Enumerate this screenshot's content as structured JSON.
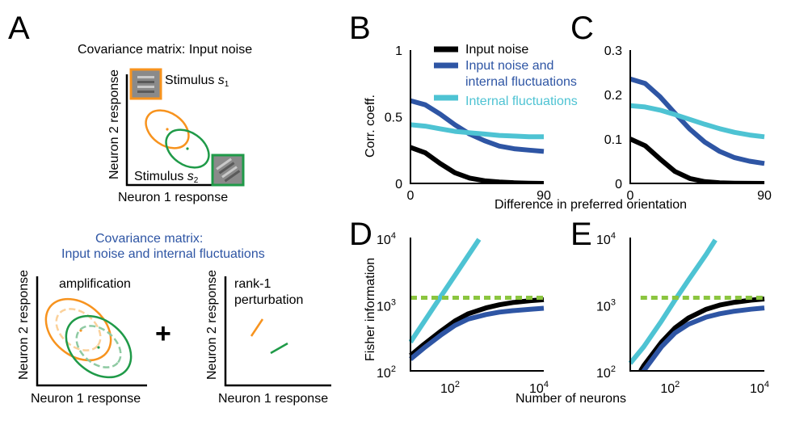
{
  "colors": {
    "black": "#000000",
    "blue": "#2e55a4",
    "cyan": "#4ec3d3",
    "green_dashed": "#8bc53f",
    "orange": "#f7931e",
    "orange_light": "#fbd19b",
    "green": "#1f9a48",
    "green_light": "#8fcaa3",
    "stimulus_orange": "#f7931e",
    "stimulus_green": "#1f9a48"
  },
  "panel_labels": {
    "A": "A",
    "B": "B",
    "C": "C",
    "D": "D",
    "E": "E"
  },
  "panelA": {
    "top_title": "Covariance matrix: Input noise",
    "stimulus1": "Stimulus ",
    "stimulus1_sym": "s",
    "stimulus1_sub": "1",
    "stimulus2": "Stimulus ",
    "stimulus2_sym": "s",
    "stimulus2_sub": "2",
    "ylabel": "Neuron 2 response",
    "xlabel": "Neuron 1 response",
    "bottom_title_line1": "Covariance matrix:",
    "bottom_title_line2": "Input noise and internal fluctuations",
    "amplification": "amplification",
    "rank1_line1": "rank-1",
    "rank1_line2": "perturbation",
    "plus": "+"
  },
  "shared": {
    "correlation_xlabel": "Difference in preferred orientation",
    "fisher_xlabel": "Number of neurons",
    "ylabel_BC": "Corr. coeff.",
    "ylabel_DE": "Fisher information"
  },
  "chart_data": [
    {
      "panel": "B",
      "type": "line",
      "x": [
        0,
        10,
        20,
        30,
        40,
        50,
        60,
        70,
        80,
        90
      ],
      "ylim": [
        0,
        1
      ],
      "xlim": [
        0,
        90
      ],
      "xticks": [
        "0",
        "90"
      ],
      "yticks": [
        "0",
        "0.5",
        "1"
      ],
      "legend": "top-right",
      "series": [
        {
          "name": "Input noise",
          "color": "#000000",
          "values": [
            0.27,
            0.23,
            0.15,
            0.08,
            0.04,
            0.02,
            0.01,
            0.005,
            0.002,
            0.0
          ]
        },
        {
          "name": "Input noise and internal fluctuations",
          "color": "#2e55a4",
          "values": [
            0.62,
            0.59,
            0.52,
            0.44,
            0.37,
            0.32,
            0.28,
            0.26,
            0.25,
            0.24
          ]
        },
        {
          "name": "Internal fluctuations",
          "color": "#4ec3d3",
          "values": [
            0.44,
            0.43,
            0.41,
            0.39,
            0.38,
            0.37,
            0.36,
            0.355,
            0.35,
            0.35
          ]
        }
      ]
    },
    {
      "panel": "C",
      "type": "line",
      "x": [
        0,
        10,
        20,
        30,
        40,
        50,
        60,
        70,
        80,
        90
      ],
      "ylim": [
        0,
        0.3
      ],
      "xlim": [
        0,
        90
      ],
      "xticks": [
        "0",
        "90"
      ],
      "yticks": [
        "0",
        "0.1",
        "0.2",
        "0.3"
      ],
      "series": [
        {
          "color": "#000000",
          "values": [
            0.1,
            0.085,
            0.055,
            0.027,
            0.011,
            0.004,
            0.0015,
            0.0005,
            0.0002,
            0.0
          ]
        },
        {
          "color": "#2e55a4",
          "values": [
            0.235,
            0.225,
            0.195,
            0.158,
            0.122,
            0.093,
            0.072,
            0.058,
            0.05,
            0.045
          ]
        },
        {
          "color": "#4ec3d3",
          "values": [
            0.175,
            0.172,
            0.165,
            0.155,
            0.144,
            0.133,
            0.123,
            0.115,
            0.109,
            0.105
          ]
        }
      ]
    },
    {
      "panel": "D",
      "type": "line",
      "xscale": "log",
      "yscale": "log",
      "xlim": [
        10,
        10000
      ],
      "ylim": [
        100,
        10000
      ],
      "xtick_base": [
        "10",
        "10"
      ],
      "xtick_exp": [
        "2",
        "4"
      ],
      "ytick_base": [
        "10",
        "10",
        "10"
      ],
      "ytick_exp": [
        "2",
        "3",
        "4"
      ],
      "x": [
        10,
        20,
        50,
        100,
        200,
        500,
        1000,
        2000,
        5000,
        10000
      ],
      "series": [
        {
          "color": "#000000",
          "values": [
            170,
            250,
            400,
            560,
            720,
            880,
            980,
            1060,
            1130,
            1170
          ]
        },
        {
          "color": "#2e55a4",
          "values": [
            150,
            220,
            350,
            480,
            600,
            700,
            760,
            800,
            840,
            870
          ]
        },
        {
          "color": "#4ec3d3",
          "x": [
            10,
            20,
            50,
            100,
            200,
            350
          ],
          "values": [
            270,
            540,
            1350,
            2700,
            5400,
            9400
          ]
        },
        {
          "color": "#8bc53f",
          "dashed": true,
          "values": [
            1250,
            1250,
            1250,
            1250,
            1250,
            1250,
            1250,
            1250,
            1250,
            1250
          ]
        }
      ]
    },
    {
      "panel": "E",
      "type": "line",
      "xscale": "log",
      "yscale": "log",
      "xlim": [
        10,
        10000
      ],
      "ylim": [
        100,
        10000
      ],
      "xtick_base": [
        "10",
        "10"
      ],
      "xtick_exp": [
        "2",
        "4"
      ],
      "ytick_base": [
        "10",
        "10",
        "10"
      ],
      "ytick_exp": [
        "2",
        "3",
        "4"
      ],
      "x": [
        17,
        20,
        50,
        100,
        200,
        500,
        1000,
        2000,
        5000,
        10000
      ],
      "series": [
        {
          "color": "#000000",
          "values": [
            100,
            120,
            270,
            440,
            620,
            840,
            970,
            1060,
            1150,
            1200
          ]
        },
        {
          "color": "#2e55a4",
          "values": [
            85,
            100,
            230,
            370,
            500,
            640,
            720,
            780,
            840,
            880
          ]
        },
        {
          "color": "#4ec3d3",
          "x": [
            10,
            20,
            50,
            100,
            200,
            500,
            800
          ],
          "values": [
            130,
            230,
            560,
            1150,
            2300,
            5600,
            9200
          ]
        },
        {
          "color": "#8bc53f",
          "dashed": true,
          "values": [
            1250,
            1250,
            1250,
            1250,
            1250,
            1250,
            1250,
            1250,
            1250,
            1250
          ]
        }
      ]
    }
  ]
}
